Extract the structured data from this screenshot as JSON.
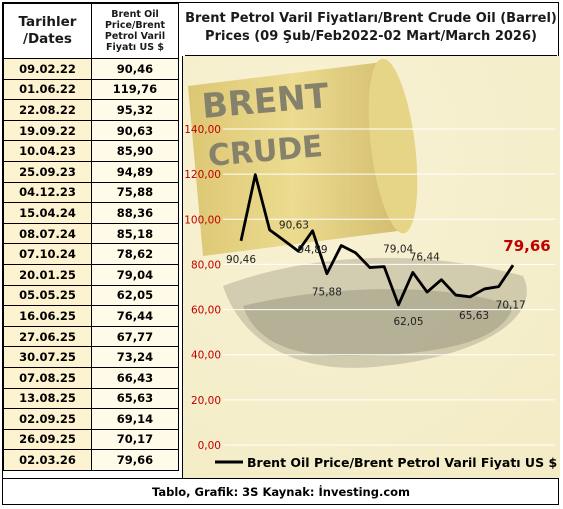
{
  "table": {
    "header_date": "Tarihler /Dates",
    "header_value": "Brent Oil Price/Brent Petrol Varil Fiyatı US $",
    "rows": [
      {
        "date": "09.02.22",
        "value": "90,46"
      },
      {
        "date": "01.06.22",
        "value": "119,76"
      },
      {
        "date": "22.08.22",
        "value": "95,32"
      },
      {
        "date": "19.09.22",
        "value": "90,63"
      },
      {
        "date": "10.04.23",
        "value": "85,90"
      },
      {
        "date": "25.09.23",
        "value": "94,89"
      },
      {
        "date": "04.12.23",
        "value": "75,88"
      },
      {
        "date": "15.04.24",
        "value": "88,36"
      },
      {
        "date": "08.07.24",
        "value": "85,18"
      },
      {
        "date": "07.10.24",
        "value": "78,62"
      },
      {
        "date": "20.01.25",
        "value": "79,04"
      },
      {
        "date": "05.05.25",
        "value": "62,05"
      },
      {
        "date": "16.06.25",
        "value": "76,44"
      },
      {
        "date": "27.06.25",
        "value": "67,77"
      },
      {
        "date": "30.07.25",
        "value": "73,24"
      },
      {
        "date": "07.08.25",
        "value": "66,43"
      },
      {
        "date": "13.08.25",
        "value": "65,63"
      },
      {
        "date": "02.09.25",
        "value": "69,14"
      },
      {
        "date": "26.09.25",
        "value": "70,17"
      },
      {
        "date": "02.03.26",
        "value": "79,66"
      }
    ]
  },
  "chart_title_line1": "Brent Petrol Varil Fiyatları/Brent Crude Oil (Barrel)",
  "chart_title_line2": "Prices (09 Şub/Feb2022-02 Mart/March 2026)",
  "background_barrel_text": [
    "BRENT",
    "CRUDE"
  ],
  "footer": "Tablo, Grafik: 3S  Kaynak: İnvesting.com",
  "colors": {
    "line": "#000000",
    "tick_labels": "#c00000",
    "highlight": "#c00000",
    "background": "#f3ecc6"
  },
  "chart_data": {
    "type": "line",
    "title": "Brent Petrol Varil Fiyatları/Brent Crude Oil (Barrel) Prices (09 Şub/Feb2022-02 Mart/March 2026)",
    "x": [
      "09.02.22",
      "01.06.22",
      "22.08.22",
      "19.09.22",
      "10.04.23",
      "25.09.23",
      "04.12.23",
      "15.04.24",
      "08.07.24",
      "07.10.24",
      "20.01.25",
      "05.05.25",
      "16.06.25",
      "27.06.25",
      "30.07.25",
      "07.08.25",
      "13.08.25",
      "02.09.25",
      "26.09.25",
      "02.03.26"
    ],
    "series": [
      {
        "name": "Brent Oil Price/Brent Petrol Varil Fiyatı US $",
        "values": [
          90.46,
          119.76,
          95.32,
          90.63,
          85.9,
          94.89,
          75.88,
          88.36,
          85.18,
          78.62,
          79.04,
          62.05,
          76.44,
          67.77,
          73.24,
          66.43,
          65.63,
          69.14,
          70.17,
          79.66
        ]
      }
    ],
    "ylim": [
      0,
      140
    ],
    "yticks": [
      "0,00",
      "20,00",
      "40,00",
      "60,00",
      "80,00",
      "100,00",
      "120,00",
      "140,00"
    ],
    "grid": true,
    "legend": "bottom",
    "data_labels": [
      {
        "index": 0,
        "text": "90,46"
      },
      {
        "index": 3,
        "text": "90,63"
      },
      {
        "index": 5,
        "text": "94,89"
      },
      {
        "index": 6,
        "text": "75,88"
      },
      {
        "index": 10,
        "text": "79,04"
      },
      {
        "index": 11,
        "text": "62,05"
      },
      {
        "index": 12,
        "text": "76,44"
      },
      {
        "index": 16,
        "text": "65,63"
      },
      {
        "index": 18,
        "text": "70,17"
      },
      {
        "index": 19,
        "text": "79,66",
        "highlight": true
      }
    ]
  }
}
